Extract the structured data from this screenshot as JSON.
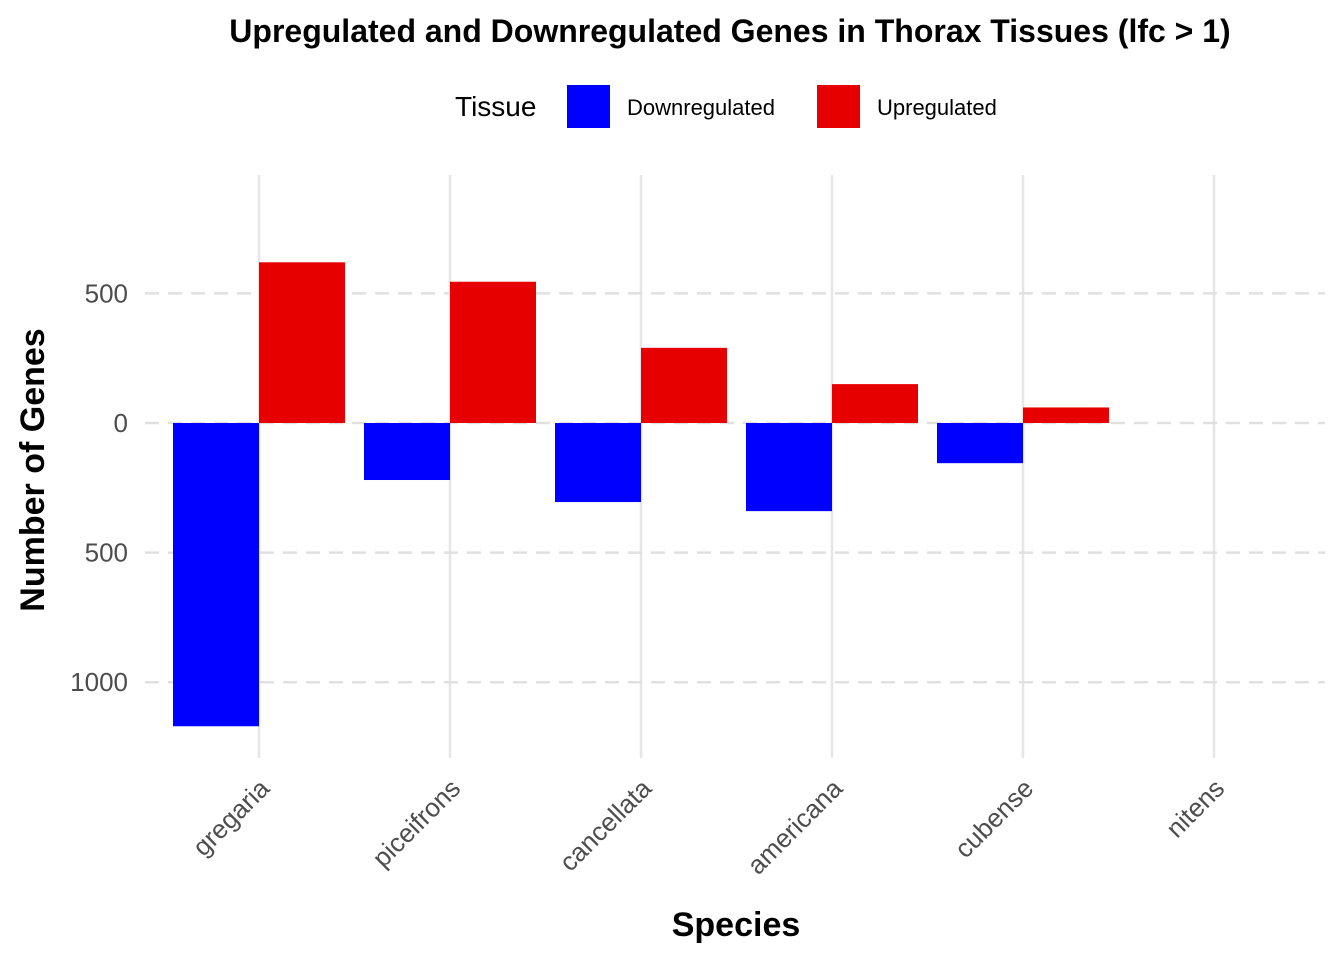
{
  "chart_data": {
    "type": "bar",
    "title": "Upregulated and Downregulated Genes in Thorax Tissues (lfc > 1)",
    "xlabel": "Species",
    "ylabel": "Number of Genes",
    "categories": [
      "gregaria",
      "piceifrons",
      "cancellata",
      "americana",
      "cubense",
      "nitens"
    ],
    "series": [
      {
        "name": "Downregulated",
        "color": "#0000ff",
        "values": [
          -1170,
          -220,
          -305,
          -340,
          -155,
          0
        ]
      },
      {
        "name": "Upregulated",
        "color": "#e60000",
        "values": [
          620,
          545,
          290,
          150,
          60,
          0
        ]
      }
    ],
    "legend": {
      "title": "Tissue",
      "position": "top"
    },
    "y_ticks": [
      500,
      0,
      -500,
      -1000
    ],
    "y_tick_labels": [
      "500",
      "0",
      "500",
      "1000"
    ],
    "ylim": [
      -1290,
      950
    ],
    "grid": true
  }
}
